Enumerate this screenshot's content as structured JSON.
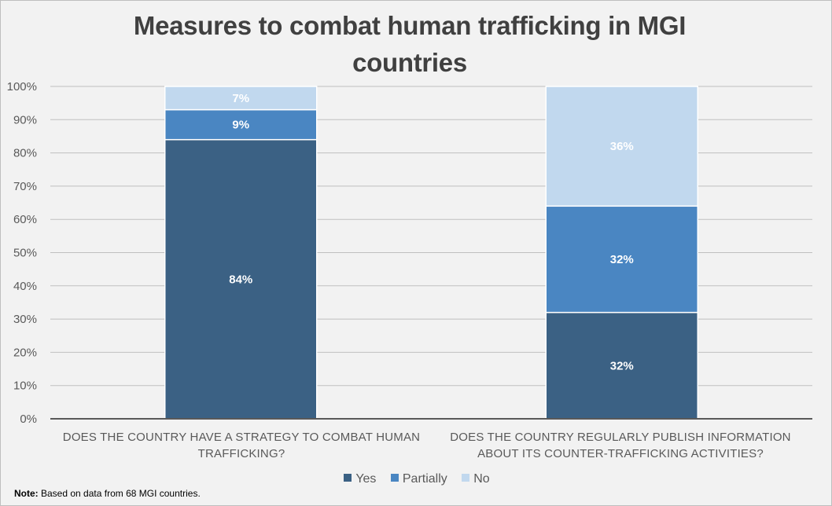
{
  "chart_data": {
    "type": "bar",
    "stacked": true,
    "title": "Measures to combat human trafficking in MGI countries",
    "categories": [
      "DOES THE COUNTRY HAVE A STRATEGY TO COMBAT HUMAN TRAFFICKING?",
      "DOES THE COUNTRY REGULARLY PUBLISH INFORMATION ABOUT ITS COUNTER-TRAFFICKING ACTIVITIES?"
    ],
    "series": [
      {
        "name": "Yes",
        "color": "#3b6184",
        "values": [
          84,
          32
        ],
        "labels": [
          "84%",
          "32%"
        ]
      },
      {
        "name": "Partially",
        "color": "#4a86c2",
        "values": [
          9,
          32
        ],
        "labels": [
          "9%",
          "32%"
        ]
      },
      {
        "name": "No",
        "color": "#c1d8ee",
        "values": [
          7,
          36
        ],
        "labels": [
          "7%",
          "36%"
        ]
      }
    ],
    "ylim": [
      0,
      100
    ],
    "yticks": [
      0,
      10,
      20,
      30,
      40,
      50,
      60,
      70,
      80,
      90,
      100
    ],
    "ytick_labels": [
      "0%",
      "10%",
      "20%",
      "30%",
      "40%",
      "50%",
      "60%",
      "70%",
      "80%",
      "90%",
      "100%"
    ],
    "xlabel": "",
    "ylabel": "",
    "grid": true,
    "legend_position": "bottom"
  },
  "note": {
    "label": "Note:",
    "text": " Based on data from 68 MGI countries."
  }
}
